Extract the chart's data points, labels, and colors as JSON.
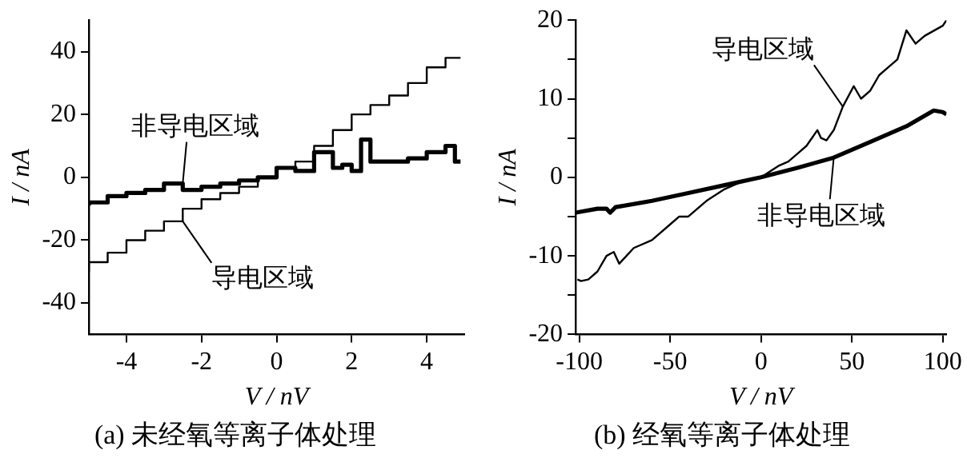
{
  "chart_data": [
    {
      "type": "step",
      "title": "(a) 未经氧等离子体处理",
      "xlabel": "V / nV",
      "ylabel": "I / nA",
      "xlim": [
        -5,
        5
      ],
      "ylim": [
        -50,
        50
      ],
      "xticks": [
        -4,
        -2,
        0,
        2,
        4
      ],
      "yticks": [
        -40,
        -20,
        0,
        20,
        40
      ],
      "grid": false,
      "series": [
        {
          "name": "导电区域",
          "color": "#000000",
          "x": [
            -5,
            -4.5,
            -4,
            -3.5,
            -3,
            -2.5,
            -2,
            -1.5,
            -1,
            -0.5,
            0,
            0.5,
            1,
            1.5,
            2,
            2.5,
            3,
            3.5,
            4,
            4.5,
            4.9
          ],
          "values": [
            -30,
            -27,
            -24,
            -20,
            -17,
            -14,
            -10,
            -7,
            -5,
            -3,
            0,
            3,
            5,
            10,
            15,
            20,
            23,
            26,
            30,
            35,
            38
          ]
        },
        {
          "name": "非导电区域",
          "color": "#000000",
          "x": [
            -5,
            -4.5,
            -4,
            -3.5,
            -3,
            -2.5,
            -2,
            -1.5,
            -1,
            -0.5,
            0,
            0.5,
            1,
            1.5,
            1.75,
            2,
            2.25,
            2.5,
            2.75,
            3,
            3.5,
            4,
            4.5,
            4.75,
            4.9
          ],
          "values": [
            -9,
            -8,
            -6,
            -5,
            -4,
            -2,
            -4,
            -3,
            -2,
            -1,
            0,
            3,
            2,
            8,
            3,
            4,
            2,
            12,
            5,
            5,
            5,
            6,
            8,
            10,
            5
          ]
        }
      ]
    },
    {
      "type": "line",
      "title": "(b) 经氧等离子体处理",
      "xlabel": "V / nV",
      "ylabel": "I / nA",
      "xlim": [
        -102,
        102
      ],
      "ylim": [
        -20,
        20
      ],
      "xticks": [
        -100,
        -50,
        0,
        50,
        100
      ],
      "yticks": [
        -20,
        {
          "value": -15,
          "label": null
        },
        -10,
        {
          "value": -5,
          "label": null
        },
        0,
        {
          "value": 5,
          "label": null
        },
        10,
        {
          "value": 15,
          "label": null
        },
        20
      ],
      "grid": false,
      "series": [
        {
          "name": "导电区域",
          "color": "#000000",
          "x": [
            -101,
            -99,
            -95,
            -90,
            -85,
            -81,
            -78,
            -70,
            -60,
            -50,
            -45,
            -40,
            -30,
            -20,
            -10,
            0,
            10,
            15,
            20,
            25,
            31,
            33,
            36,
            40,
            45,
            51,
            55,
            60,
            65,
            70,
            75,
            80,
            85,
            90,
            100,
            102
          ],
          "values": [
            -13,
            -13.2,
            -13,
            -12,
            -10,
            -9.5,
            -11,
            -9,
            -8,
            -6,
            -5,
            -5,
            -3,
            -1.5,
            -0.5,
            0,
            1.5,
            2,
            3,
            4,
            6,
            5,
            4.7,
            6,
            9,
            11.6,
            10,
            11,
            13,
            14,
            15,
            18.7,
            17,
            18,
            19.3,
            20
          ]
        },
        {
          "name": "非导电区域",
          "color": "#000000",
          "x": [
            -102,
            -90,
            -85,
            -83,
            -80,
            -60,
            -40,
            -20,
            0,
            20,
            40,
            60,
            80,
            95,
            100,
            102
          ],
          "values": [
            -4.5,
            -4,
            -4,
            -4.5,
            -3.8,
            -3,
            -2,
            -1,
            0,
            1.2,
            2.5,
            4.5,
            6.5,
            8.5,
            8.3,
            8
          ]
        }
      ]
    }
  ]
}
